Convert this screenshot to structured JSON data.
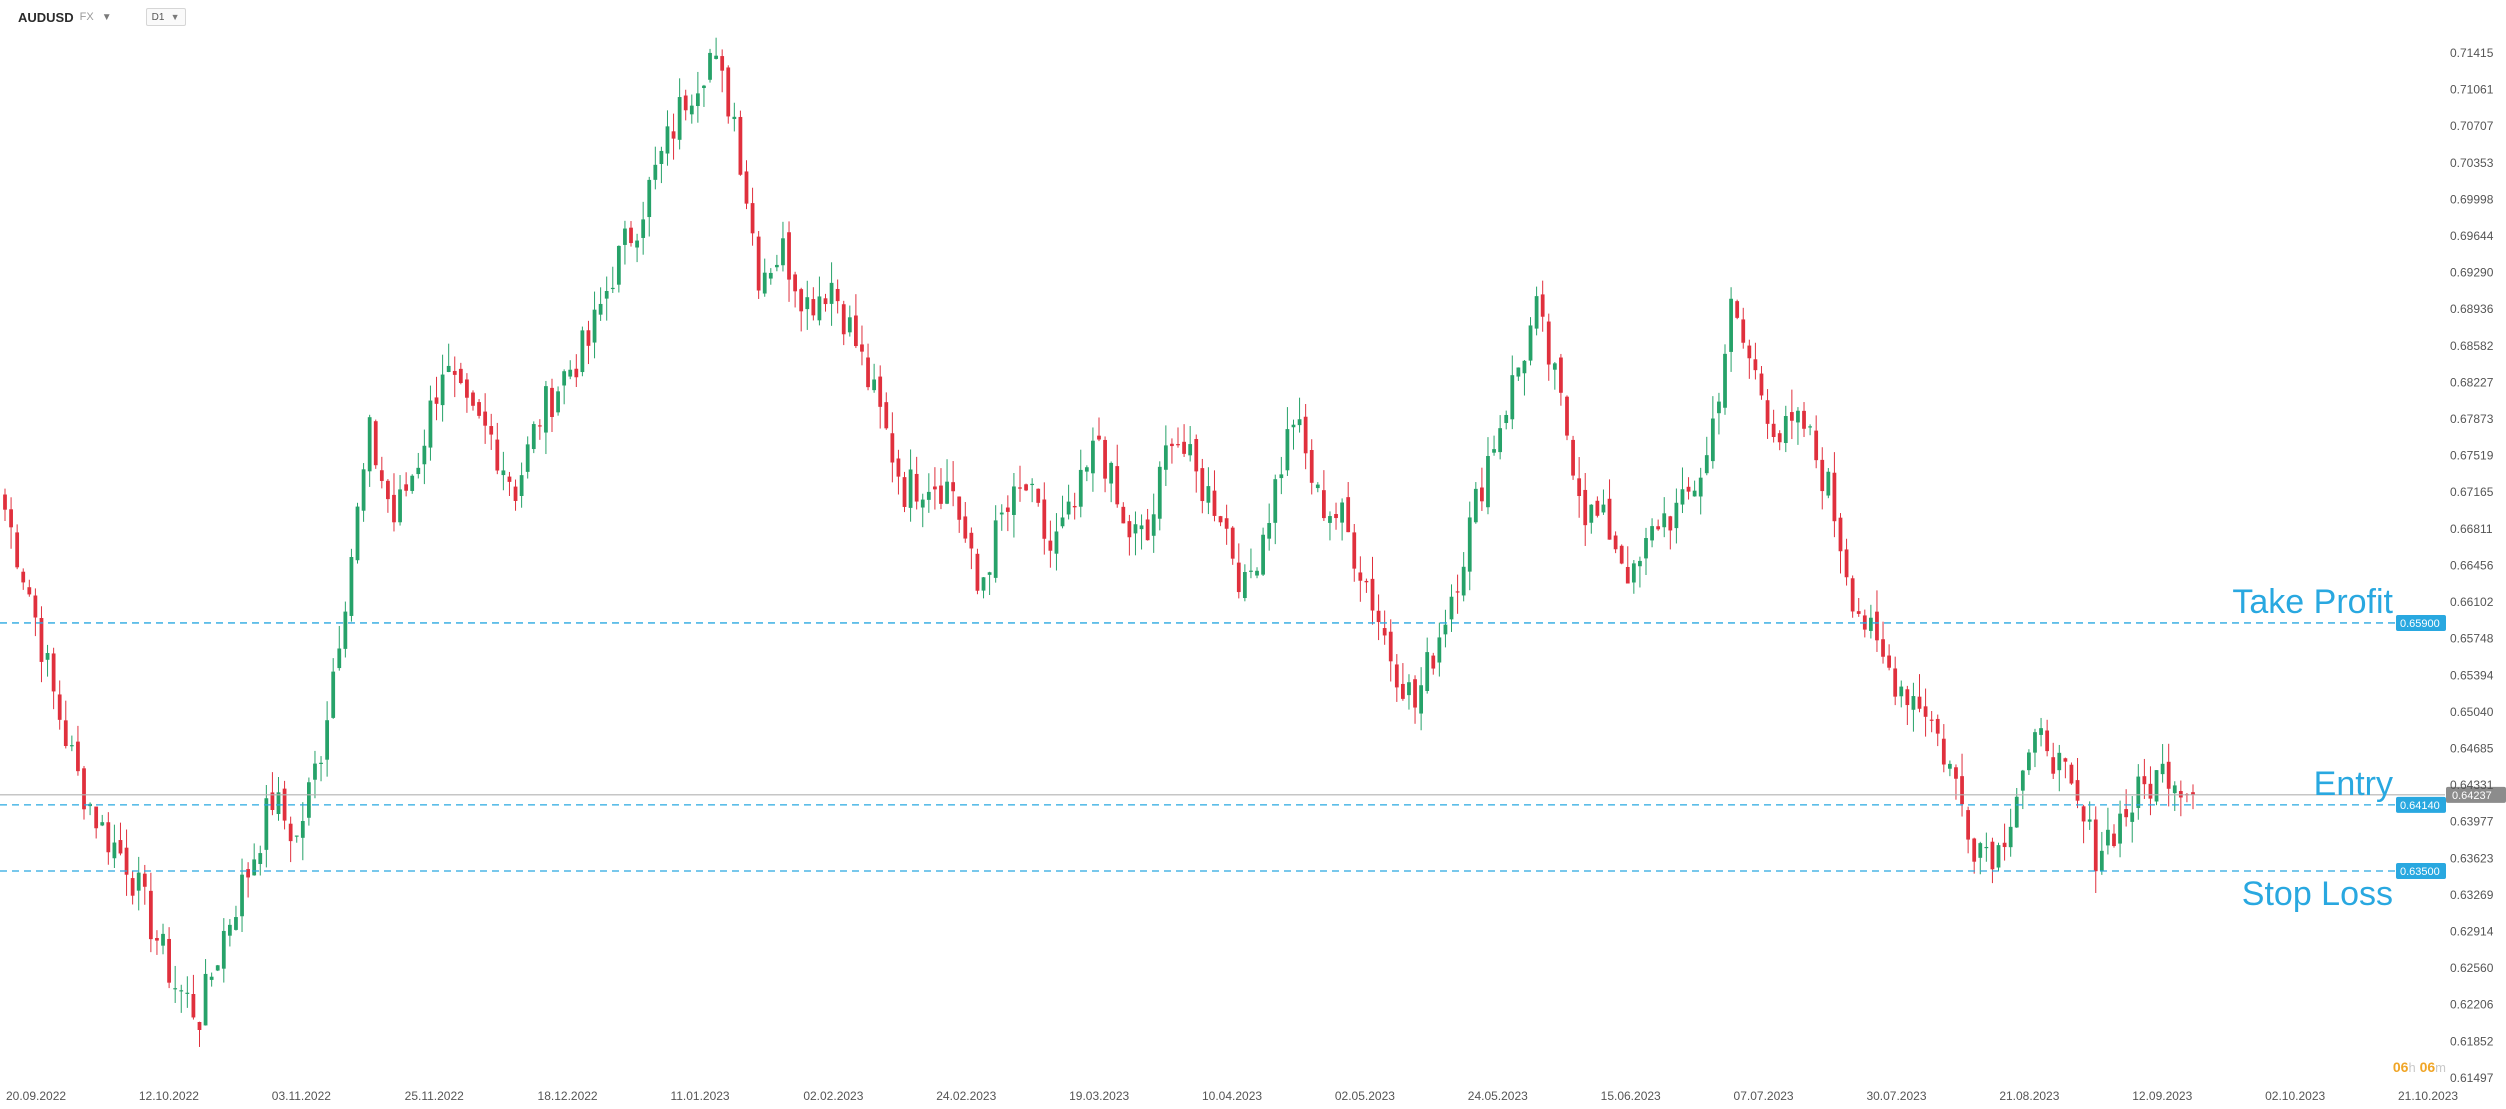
{
  "header": {
    "symbol": "AUDUSD",
    "market": "FX",
    "timeframe": "D1"
  },
  "timer": {
    "hours": "06",
    "h_unit": "h",
    "minutes": "06",
    "m_unit": "m"
  },
  "chart_data": {
    "type": "candlestick",
    "y_ticks": [
      "0.71415",
      "0.71061",
      "0.70707",
      "0.70353",
      "0.69998",
      "0.69644",
      "0.69290",
      "0.68936",
      "0.68582",
      "0.68227",
      "0.67873",
      "0.67519",
      "0.67165",
      "0.66811",
      "0.66456",
      "0.66102",
      "0.65748",
      "0.65394",
      "0.65040",
      "0.64685",
      "0.64331",
      "0.63977",
      "0.63623",
      "0.63269",
      "0.62914",
      "0.62560",
      "0.62206",
      "0.61852",
      "0.61497"
    ],
    "ylim": [
      0.61497,
      0.71415
    ],
    "x_ticks": [
      "20.09.2022",
      "12.10.2022",
      "03.11.2022",
      "25.11.2022",
      "18.12.2022",
      "11.01.2023",
      "02.02.2023",
      "24.02.2023",
      "19.03.2023",
      "10.04.2023",
      "02.05.2023",
      "24.05.2023",
      "15.06.2023",
      "07.07.2023",
      "30.07.2023",
      "21.08.2023",
      "12.09.2023",
      "02.10.2023",
      "21.10.2023"
    ],
    "current_price": 0.64237,
    "levels": [
      {
        "name": "Take Profit",
        "value": 0.659,
        "value_label": "0.65900",
        "color": "#29a8e0"
      },
      {
        "name": "Entry",
        "value": 0.6414,
        "value_label": "0.64140",
        "color": "#29a8e0"
      },
      {
        "name": "Stop Loss",
        "value": 0.635,
        "value_label": "0.63500",
        "color": "#29a8e0"
      }
    ],
    "current_label": "0.64237",
    "up_color": "#26a269",
    "down_color": "#e0303d",
    "close_path": [
      [
        0,
        0.67
      ],
      [
        4,
        0.662
      ],
      [
        8,
        0.652
      ],
      [
        12,
        0.644
      ],
      [
        16,
        0.639
      ],
      [
        20,
        0.636
      ],
      [
        24,
        0.63
      ],
      [
        28,
        0.624
      ],
      [
        32,
        0.621
      ],
      [
        36,
        0.629
      ],
      [
        40,
        0.635
      ],
      [
        44,
        0.642
      ],
      [
        48,
        0.638
      ],
      [
        52,
        0.647
      ],
      [
        56,
        0.662
      ],
      [
        60,
        0.677
      ],
      [
        64,
        0.669
      ],
      [
        68,
        0.675
      ],
      [
        72,
        0.684
      ],
      [
        76,
        0.679
      ],
      [
        80,
        0.677
      ],
      [
        84,
        0.672
      ],
      [
        88,
        0.679
      ],
      [
        92,
        0.683
      ],
      [
        96,
        0.686
      ],
      [
        100,
        0.693
      ],
      [
        104,
        0.698
      ],
      [
        108,
        0.704
      ],
      [
        112,
        0.71
      ],
      [
        116,
        0.714
      ],
      [
        120,
        0.708
      ],
      [
        124,
        0.693
      ],
      [
        128,
        0.695
      ],
      [
        132,
        0.69
      ],
      [
        136,
        0.692
      ],
      [
        140,
        0.686
      ],
      [
        144,
        0.679
      ],
      [
        148,
        0.672
      ],
      [
        152,
        0.673
      ],
      [
        156,
        0.672
      ],
      [
        160,
        0.662
      ],
      [
        164,
        0.669
      ],
      [
        168,
        0.672
      ],
      [
        172,
        0.666
      ],
      [
        176,
        0.67
      ],
      [
        180,
        0.677
      ],
      [
        184,
        0.668
      ],
      [
        188,
        0.667
      ],
      [
        192,
        0.678
      ],
      [
        196,
        0.673
      ],
      [
        200,
        0.67
      ],
      [
        204,
        0.662
      ],
      [
        208,
        0.67
      ],
      [
        212,
        0.679
      ],
      [
        216,
        0.671
      ],
      [
        220,
        0.669
      ],
      [
        224,
        0.663
      ],
      [
        228,
        0.656
      ],
      [
        232,
        0.651
      ],
      [
        236,
        0.658
      ],
      [
        240,
        0.666
      ],
      [
        244,
        0.675
      ],
      [
        248,
        0.682
      ],
      [
        252,
        0.689
      ],
      [
        256,
        0.68
      ],
      [
        260,
        0.67
      ],
      [
        264,
        0.668
      ],
      [
        268,
        0.663
      ],
      [
        272,
        0.669
      ],
      [
        276,
        0.67
      ],
      [
        280,
        0.675
      ],
      [
        284,
        0.689
      ],
      [
        288,
        0.683
      ],
      [
        292,
        0.677
      ],
      [
        296,
        0.678
      ],
      [
        300,
        0.672
      ],
      [
        304,
        0.662
      ],
      [
        308,
        0.656
      ],
      [
        312,
        0.653
      ],
      [
        316,
        0.651
      ],
      [
        320,
        0.645
      ],
      [
        324,
        0.638
      ],
      [
        328,
        0.637
      ],
      [
        332,
        0.645
      ],
      [
        336,
        0.648
      ],
      [
        340,
        0.642
      ],
      [
        344,
        0.637
      ],
      [
        348,
        0.64
      ],
      [
        352,
        0.643
      ],
      [
        356,
        0.645
      ],
      [
        360,
        0.6424
      ]
    ]
  }
}
